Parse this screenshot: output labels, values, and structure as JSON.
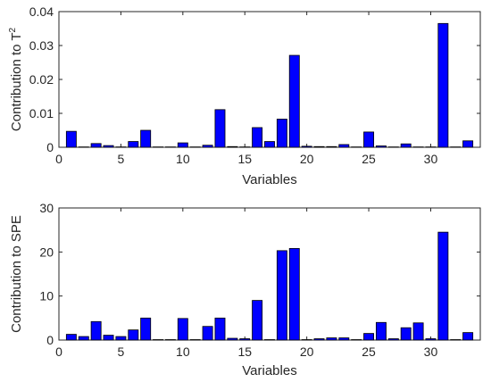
{
  "chart_data": [
    {
      "type": "bar",
      "xlabel": "Variables",
      "ylabel": "Contribution to T",
      "ylabel_sup": "2",
      "xlim": [
        0,
        34
      ],
      "ylim": [
        0,
        0.04
      ],
      "xticks": [
        0,
        5,
        10,
        15,
        20,
        25,
        30
      ],
      "yticks": [
        0,
        0.01,
        0.02,
        0.03,
        0.04
      ],
      "ytick_labels": [
        "0",
        "0.01",
        "0.02",
        "0.03",
        "0.04"
      ],
      "bar_color": "#0000ff",
      "x": [
        1,
        2,
        3,
        4,
        5,
        6,
        7,
        8,
        9,
        10,
        11,
        12,
        13,
        14,
        15,
        16,
        17,
        18,
        19,
        20,
        21,
        22,
        23,
        24,
        25,
        26,
        27,
        28,
        29,
        30,
        31,
        32,
        33
      ],
      "values": [
        0.0047,
        0.0001,
        0.0011,
        0.0005,
        0.0001,
        0.0017,
        0.005,
        0.0001,
        0.0001,
        0.0013,
        0.0001,
        0.0006,
        0.0111,
        0.0002,
        0.0001,
        0.0058,
        0.0017,
        0.0083,
        0.0271,
        0.0003,
        0.0002,
        0.0002,
        0.0008,
        0.0001,
        0.0045,
        0.0004,
        0.0001,
        0.001,
        0.0001,
        0.0001,
        0.0365,
        0.0001,
        0.0019
      ]
    },
    {
      "type": "bar",
      "xlabel": "Variables",
      "ylabel": "Contribution to SPE",
      "xlim": [
        0,
        34
      ],
      "ylim": [
        0,
        30
      ],
      "xticks": [
        0,
        5,
        10,
        15,
        20,
        25,
        30
      ],
      "yticks": [
        0,
        10,
        20,
        30
      ],
      "ytick_labels": [
        "0",
        "10",
        "20",
        "30"
      ],
      "bar_color": "#0000ff",
      "x": [
        1,
        2,
        3,
        4,
        5,
        6,
        7,
        8,
        9,
        10,
        11,
        12,
        13,
        14,
        15,
        16,
        17,
        18,
        19,
        20,
        21,
        22,
        23,
        24,
        25,
        26,
        27,
        28,
        29,
        30,
        31,
        32,
        33
      ],
      "values": [
        1.3,
        0.8,
        4.2,
        1.1,
        0.8,
        2.3,
        5.0,
        0.1,
        0.1,
        4.9,
        0.1,
        3.1,
        5.0,
        0.4,
        0.3,
        9.0,
        0.1,
        20.3,
        20.8,
        0.1,
        0.3,
        0.5,
        0.5,
        0.1,
        1.5,
        4.0,
        0.3,
        2.8,
        3.9,
        0.3,
        24.5,
        0.1,
        1.7
      ]
    }
  ]
}
